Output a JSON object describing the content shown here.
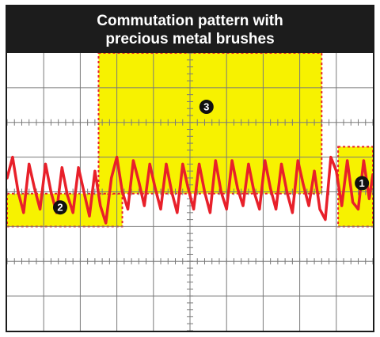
{
  "title": {
    "line1": "Commutation pattern with",
    "line2": "precious metal brushes"
  },
  "colors": {
    "trace": "#e8202a",
    "highlight": "#f7f200",
    "highlight_border": "#e8202a",
    "grid": "#7a7a7a",
    "background": "#ffffff",
    "title_bg": "#1c1c1c",
    "marker_bg": "#111111",
    "marker_fg": "#ffffff"
  },
  "markers": [
    {
      "id": "marker-1",
      "label": "1"
    },
    {
      "id": "marker-2",
      "label": "2"
    },
    {
      "id": "marker-3",
      "label": "3"
    }
  ],
  "chart_data": {
    "type": "line",
    "title": "Commutation pattern with precious metal brushes",
    "xlabel": "",
    "ylabel": "",
    "grid": true,
    "grid_divisions": {
      "x": 10,
      "y": 8
    },
    "xlim": [
      0,
      10
    ],
    "ylim": [
      -4,
      4
    ],
    "axis_ticks": "center cross with minor ticks",
    "series": [
      {
        "x": [
          0,
          0.15,
          0.3,
          0.45,
          0.6,
          0.75,
          0.9,
          1.05,
          1.2,
          1.35,
          1.5,
          1.65,
          1.8,
          1.95,
          2.1,
          2.25,
          2.4,
          2.55,
          2.7,
          2.85,
          3.0,
          3.15,
          3.3,
          3.45,
          3.6,
          3.75,
          3.9,
          4.05,
          4.2,
          4.35,
          4.5,
          4.65,
          4.8,
          4.95,
          5.1,
          5.25,
          5.4,
          5.55,
          5.7,
          5.85,
          6.0,
          6.15,
          6.3,
          6.45,
          6.6,
          6.75,
          6.9,
          7.05,
          7.2,
          7.35,
          7.5,
          7.65,
          7.8,
          7.95,
          8.1,
          8.25,
          8.4,
          8.55,
          8.7,
          8.85,
          9.0,
          9.15,
          9.3,
          9.45,
          9.6,
          9.75,
          9.9,
          10.0
        ],
        "y": [
          0.4,
          1.0,
          0.0,
          -0.6,
          0.8,
          0.1,
          -0.5,
          0.8,
          0.0,
          -0.6,
          0.7,
          -0.1,
          -0.6,
          0.7,
          0.0,
          -0.7,
          0.6,
          -0.4,
          -0.9,
          0.4,
          1.0,
          0.0,
          -0.5,
          0.9,
          0.3,
          -0.4,
          0.8,
          0.1,
          -0.5,
          0.8,
          0.0,
          -0.6,
          0.8,
          0.1,
          -0.5,
          0.8,
          0.0,
          -0.6,
          0.9,
          0.0,
          -0.5,
          0.9,
          0.1,
          -0.4,
          0.8,
          0.0,
          -0.5,
          0.9,
          0.1,
          -0.5,
          0.8,
          0.0,
          -0.6,
          0.9,
          0.2,
          -0.4,
          0.6,
          -0.5,
          -0.8,
          1.0,
          0.6,
          -0.4,
          0.9,
          -0.3,
          -0.5,
          0.9,
          -0.2,
          0.5
        ]
      }
    ],
    "highlight_regions": [
      {
        "marker": "2",
        "x": [
          0,
          3.15
        ],
        "y": [
          -1.0,
          -0.05
        ]
      },
      {
        "marker": "3",
        "x": [
          2.5,
          8.6
        ],
        "y": [
          -0.05,
          4.0
        ]
      },
      {
        "marker": "1",
        "x": [
          9.05,
          10.0
        ],
        "y": [
          -1.0,
          1.3
        ]
      }
    ]
  }
}
